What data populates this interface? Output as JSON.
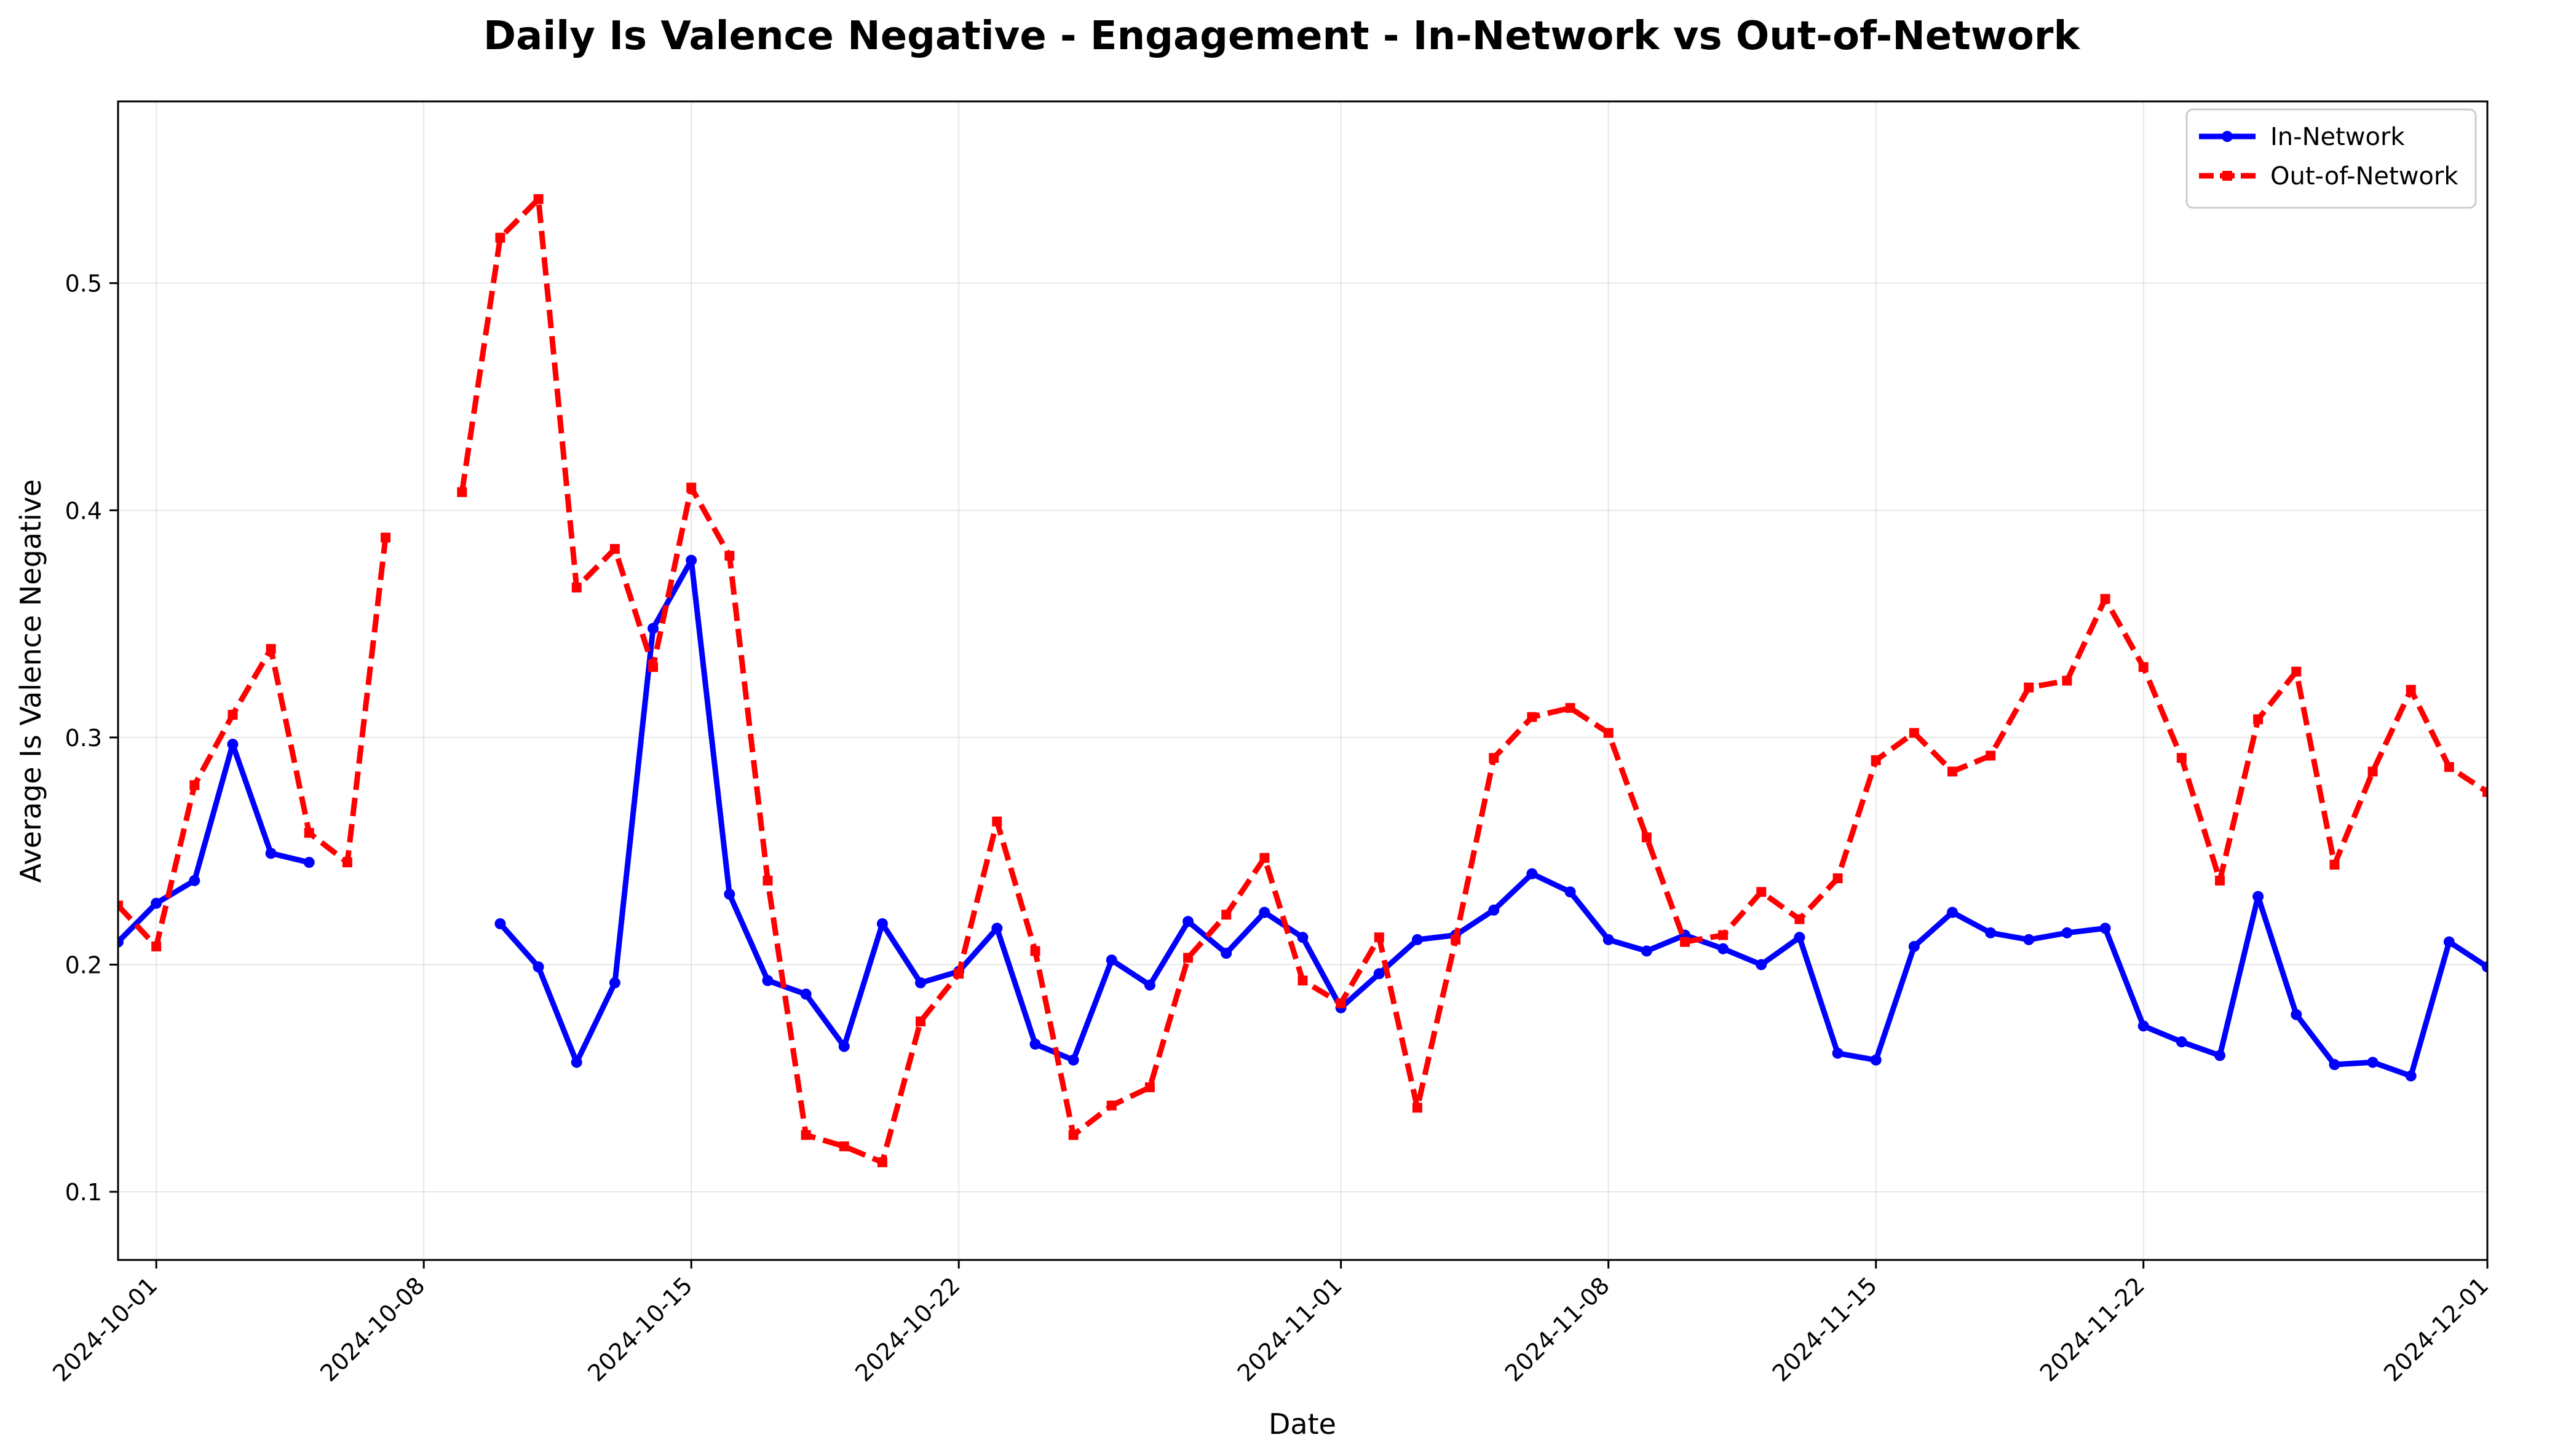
{
  "chart_data": {
    "type": "line",
    "title": "Daily Is Valence Negative - Engagement - In-Network vs Out-of-Network",
    "xlabel": "Date",
    "ylabel": "Average Is Valence Negative",
    "x_start": "2024-09-30",
    "xlim": [
      "2024-09-30",
      "2024-12-01"
    ],
    "ylim": [
      0.07,
      0.58
    ],
    "yticks": [
      "0.1",
      "0.2",
      "0.3",
      "0.4",
      "0.5"
    ],
    "xticks": [
      "2024-10-01",
      "2024-10-08",
      "2024-10-15",
      "2024-10-22",
      "2024-11-01",
      "2024-11-08",
      "2024-11-15",
      "2024-11-22",
      "2024-12-01"
    ],
    "grid": true,
    "legend_position": "top-right",
    "series": [
      {
        "name": "In-Network",
        "color": "#0000ff",
        "style": "solid",
        "marker": "circle",
        "values": [
          0.21,
          0.227,
          0.237,
          0.297,
          0.249,
          0.245,
          null,
          null,
          null,
          null,
          0.218,
          0.199,
          0.157,
          0.192,
          0.348,
          0.378,
          0.231,
          0.193,
          0.187,
          0.164,
          0.218,
          0.192,
          0.197,
          0.216,
          0.165,
          0.158,
          0.202,
          0.191,
          0.219,
          0.205,
          0.223,
          0.212,
          0.181,
          0.196,
          0.211,
          0.213,
          0.224,
          0.24,
          0.232,
          0.211,
          0.206,
          0.213,
          0.207,
          0.2,
          0.212,
          0.161,
          0.158,
          0.208,
          0.223,
          0.214,
          0.211,
          0.214,
          0.216,
          0.173,
          0.166,
          0.16,
          0.23,
          0.178,
          0.156,
          0.157,
          0.151,
          0.21,
          0.199
        ]
      },
      {
        "name": "Out-of-Network",
        "color": "#ff0000",
        "style": "dashed",
        "marker": "square",
        "values": [
          0.226,
          0.208,
          0.279,
          0.31,
          0.339,
          0.258,
          0.245,
          0.388,
          null,
          0.408,
          0.52,
          0.537,
          0.366,
          0.383,
          0.331,
          0.41,
          0.38,
          0.237,
          0.125,
          0.12,
          0.113,
          0.175,
          0.196,
          0.263,
          0.206,
          0.125,
          0.138,
          0.146,
          0.203,
          0.222,
          0.247,
          0.193,
          0.183,
          0.212,
          0.137,
          0.211,
          0.291,
          0.309,
          0.313,
          0.302,
          0.256,
          0.21,
          0.213,
          0.232,
          0.22,
          0.238,
          0.29,
          0.302,
          0.285,
          0.292,
          0.322,
          0.325,
          0.361,
          0.331,
          0.291,
          0.237,
          0.308,
          0.329,
          0.244,
          0.285,
          0.321,
          0.287,
          0.276
        ]
      }
    ]
  }
}
